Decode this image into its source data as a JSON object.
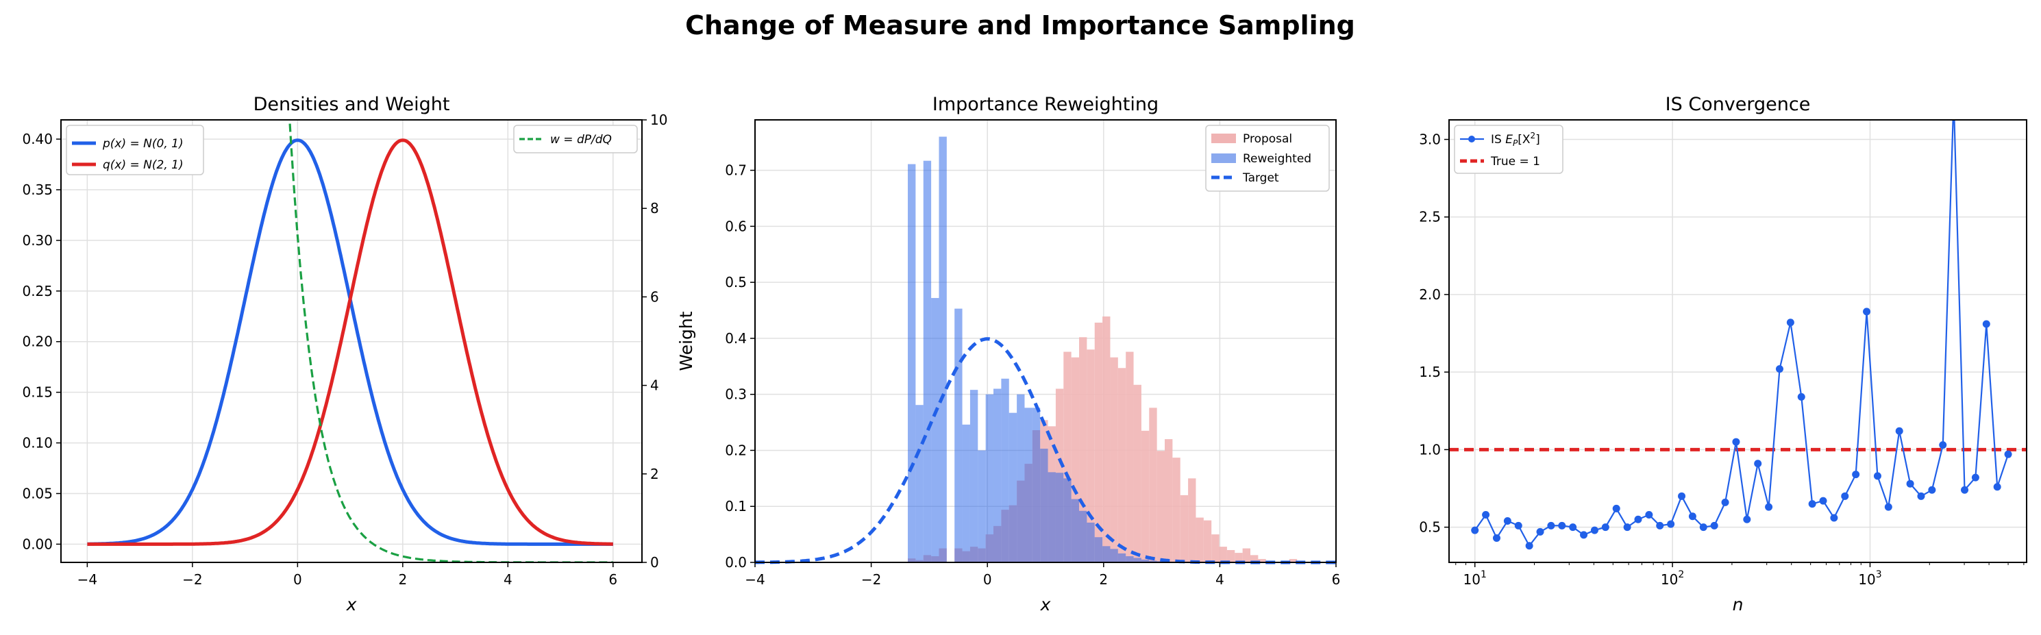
{
  "figure_title": "Change of Measure and Importance Sampling",
  "colors": {
    "p": "#2160e8",
    "q": "#e02424",
    "w": "#1aa043",
    "proposal": "#f0b3b3",
    "reweighted": "#8aa9ef",
    "target": "#2160e8",
    "is": "#2160e8",
    "true": "#e02424",
    "grid": "#e0e0e0"
  },
  "chart_data": [
    {
      "type": "line",
      "title": "Densities and Weight",
      "xlabel": "x",
      "ylabel_right": "Weight",
      "xlim": [
        -4.5,
        6.55
      ],
      "ylim": [
        -0.018,
        0.419
      ],
      "ylim_right": [
        0,
        10
      ],
      "xticks": [
        "−4",
        "−2",
        "0",
        "2",
        "4",
        "6"
      ],
      "xtick_values": [
        -4,
        -2,
        0,
        2,
        4,
        6
      ],
      "yticks": [
        "0.00",
        "0.05",
        "0.10",
        "0.15",
        "0.20",
        "0.25",
        "0.30",
        "0.35",
        "0.40"
      ],
      "ytick_values": [
        0,
        0.05,
        0.1,
        0.15,
        0.2,
        0.25,
        0.3,
        0.35,
        0.4
      ],
      "yticks_right": [
        "0",
        "2",
        "4",
        "6",
        "8",
        "10"
      ],
      "ytick_right_values": [
        0,
        2,
        4,
        6,
        8,
        10
      ],
      "grid": true,
      "series": [
        {
          "name": "p(x) = N(0, 1)",
          "function": "normal_pdf",
          "mean": 0,
          "sd": 1,
          "x_range": [
            -4,
            6
          ],
          "axis": "left",
          "style": "solid"
        },
        {
          "name": "q(x) = N(2, 1)",
          "function": "normal_pdf",
          "mean": 2,
          "sd": 1,
          "x_range": [
            -4,
            6
          ],
          "axis": "left",
          "style": "solid"
        },
        {
          "name": "w = dP/dQ",
          "function": "exp(2 - 2x)",
          "x_range": [
            -4,
            6
          ],
          "axis": "right",
          "style": "dashed"
        }
      ],
      "legend_left": "top-left",
      "legend_right": "top-right"
    },
    {
      "type": "bar",
      "title": "Importance Reweighting",
      "xlabel": "x",
      "xlim": [
        -4,
        6
      ],
      "ylim": [
        0,
        0.79
      ],
      "xticks": [
        "−4",
        "−2",
        "0",
        "2",
        "4",
        "6"
      ],
      "xtick_values": [
        -4,
        -2,
        0,
        2,
        4,
        6
      ],
      "yticks": [
        "0.0",
        "0.1",
        "0.2",
        "0.3",
        "0.4",
        "0.5",
        "0.6",
        "0.7"
      ],
      "ytick_values": [
        0,
        0.1,
        0.2,
        0.3,
        0.4,
        0.5,
        0.6,
        0.7
      ],
      "grid": true,
      "bin_start": -1.37,
      "bin_width": 0.134,
      "series": [
        {
          "name": "Proposal",
          "values": [
            0.007,
            0.004,
            0.013,
            0.011,
            0.025,
            0,
            0.025,
            0.02,
            0.028,
            0.025,
            0.05,
            0.065,
            0.094,
            0.102,
            0.146,
            0.176,
            0.236,
            0.254,
            0.243,
            0.31,
            0.376,
            0.366,
            0.402,
            0.38,
            0.428,
            0.439,
            0.366,
            0.347,
            0.376,
            0.317,
            0.235,
            0.276,
            0.199,
            0.22,
            0.187,
            0.12,
            0.15,
            0.08,
            0.075,
            0.05,
            0.028,
            0.022,
            0.017,
            0.025,
            0.013,
            0.006,
            0.003,
            0.001,
            0.001,
            0.006
          ]
        },
        {
          "name": "Reweighted",
          "values": [
            0.711,
            0.281,
            0.717,
            0.472,
            0.76,
            0,
            0.453,
            0.246,
            0.308,
            0.2,
            0.3,
            0.31,
            0.328,
            0.267,
            0.3,
            0.276,
            0.276,
            0.203,
            0.161,
            0.16,
            0.15,
            0.113,
            0.092,
            0.071,
            0.045,
            0.029,
            0.024,
            0.016,
            0.011,
            0.008,
            0.005,
            0.003,
            0.002,
            0.001,
            0.001,
            0,
            0,
            0,
            0,
            0,
            0,
            0,
            0,
            0,
            0,
            0,
            0,
            0,
            0,
            0
          ]
        },
        {
          "name": "Target",
          "function": "normal_pdf",
          "mean": 0,
          "sd": 1,
          "style": "dashed"
        }
      ],
      "legend": "top-right"
    },
    {
      "type": "line",
      "title": "IS Convergence",
      "xlabel": "n",
      "xscale": "log",
      "xlim": [
        7.4,
        6200
      ],
      "ylim": [
        0.273,
        3.126
      ],
      "xticks": [
        "10",
        "10",
        "10"
      ],
      "xtick_exponents": [
        "1",
        "2",
        "3"
      ],
      "xtick_values": [
        10,
        100,
        1000
      ],
      "yticks": [
        "0.5",
        "1.0",
        "1.5",
        "2.0",
        "2.5",
        "3.0"
      ],
      "ytick_values": [
        0.5,
        1.0,
        1.5,
        2.0,
        2.5,
        3.0
      ],
      "grid": true,
      "x_range": [
        10,
        5000
      ],
      "series": [
        {
          "name": "IS E_P[X²]",
          "label_prefix": "IS ",
          "label_math": "E",
          "label_sub": "P",
          "label_rest": "[X",
          "label_sup": "2",
          "label_end": "]",
          "values": [
            0.48,
            0.58,
            0.43,
            0.54,
            0.51,
            0.38,
            0.47,
            0.51,
            0.51,
            0.5,
            0.45,
            0.48,
            0.5,
            0.62,
            0.5,
            0.55,
            0.58,
            0.51,
            0.52,
            0.7,
            0.57,
            0.5,
            0.51,
            0.66,
            1.05,
            0.55,
            0.91,
            0.63,
            1.52,
            1.82,
            1.34,
            0.65,
            0.67,
            0.56,
            0.7,
            0.84,
            1.89,
            0.83,
            0.63,
            1.12,
            0.78,
            0.7,
            0.74,
            1.03,
            3.27,
            0.74,
            0.82,
            1.81,
            0.76,
            0.97
          ],
          "marker": "circle"
        },
        {
          "name": "True = 1",
          "value": 1,
          "style": "dashed"
        }
      ],
      "legend": "top-left"
    }
  ]
}
